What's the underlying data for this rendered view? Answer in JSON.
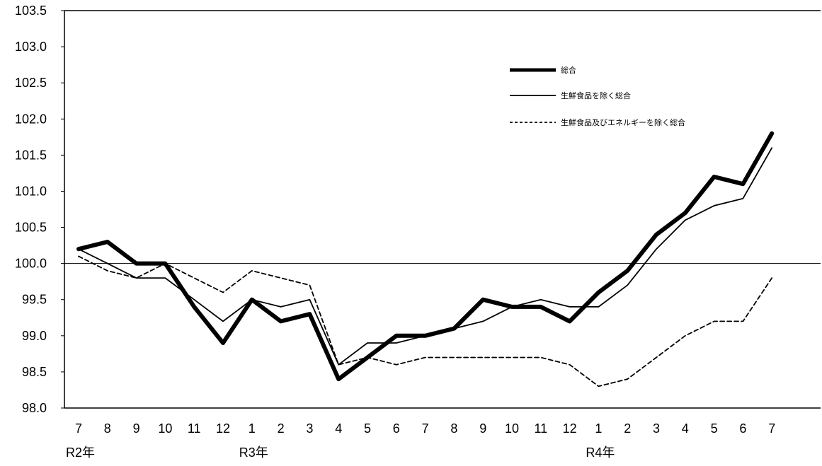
{
  "chart_data": {
    "type": "line",
    "ylim": [
      98.0,
      103.5
    ],
    "yticks": [
      "98.0",
      "98.5",
      "99.0",
      "99.5",
      "100.0",
      "100.5",
      "101.0",
      "101.5",
      "102.0",
      "102.5",
      "103.0",
      "103.5"
    ],
    "categories": [
      "7",
      "8",
      "9",
      "10",
      "11",
      "12",
      "1",
      "2",
      "3",
      "4",
      "5",
      "6",
      "7",
      "8",
      "9",
      "10",
      "11",
      "12",
      "1",
      "2",
      "3",
      "4",
      "5",
      "6",
      "7"
    ],
    "year_labels": [
      {
        "label": "R2年",
        "at_index": 0
      },
      {
        "label": "R3年",
        "at_index": 6
      },
      {
        "label": "R4年",
        "at_index": 18
      }
    ],
    "reference_line": 100.0,
    "legend_position": "upper-right",
    "series": [
      {
        "name": "総合",
        "style": "thick",
        "color": "#000000",
        "values": [
          100.2,
          100.3,
          100.0,
          100.0,
          99.4,
          98.9,
          99.5,
          99.2,
          99.3,
          98.4,
          98.7,
          99.0,
          99.0,
          99.1,
          99.5,
          99.4,
          99.4,
          99.2,
          99.6,
          99.9,
          100.4,
          100.7,
          101.2,
          101.1,
          101.8
        ]
      },
      {
        "name": "生鮮食品を除く総合",
        "style": "thin",
        "color": "#000000",
        "values": [
          100.2,
          100.0,
          99.8,
          99.8,
          99.5,
          99.2,
          99.5,
          99.4,
          99.5,
          98.6,
          98.9,
          98.9,
          99.0,
          99.1,
          99.2,
          99.4,
          99.5,
          99.4,
          99.4,
          99.7,
          100.2,
          100.6,
          100.8,
          100.9,
          101.6
        ]
      },
      {
        "name": "生鮮食品及びエネルギーを除く総合",
        "style": "dashed",
        "color": "#000000",
        "values": [
          100.1,
          99.9,
          99.8,
          100.0,
          99.8,
          99.6,
          99.9,
          99.8,
          99.7,
          98.6,
          98.7,
          98.6,
          98.7,
          98.7,
          98.7,
          98.7,
          98.7,
          98.6,
          98.3,
          98.4,
          98.7,
          99.0,
          99.2,
          99.2,
          99.8
        ]
      }
    ]
  }
}
